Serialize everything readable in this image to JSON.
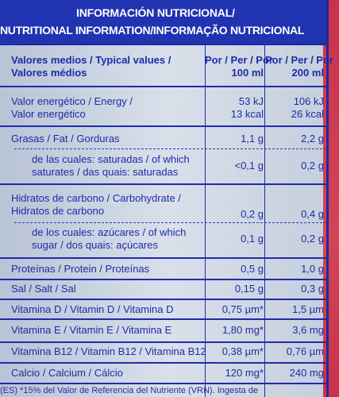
{
  "header": {
    "line1": "INFORMACIÓN NUTRICIONAL/",
    "line2": "NUTRITIONAL INFORMATION/INFORMAÇÃO NUTRICIONAL"
  },
  "columns": {
    "label_line1": "Valores medios / Typical values /",
    "label_line2": "Valores médios",
    "col1_line1": "Por / Per / Por",
    "col1_line2": "100 ml",
    "col2_line1": "Por / Per / Por",
    "col2_line2": "200 ml"
  },
  "rows": {
    "energy": {
      "label1": "Valor energético / Energy /",
      "label2": "Valor energético",
      "v1a": "53 kJ",
      "v1b": "13 kcal",
      "v2a": "106 kJ",
      "v2b": "26 kcal"
    },
    "fat": {
      "label": "Grasas / Fat / Gorduras",
      "v1": "1,1 g",
      "v2": "2,2 g"
    },
    "saturates": {
      "label1": "de las cuales: saturadas / of which",
      "label2": "saturates / das quais: saturadas",
      "v1": "<0,1 g",
      "v2": "0,2 g"
    },
    "carbs": {
      "label1": "Hidratos de carbono / Carbohydrate /",
      "label2": "Hidratos de carbono",
      "v1": "0,2 g",
      "v2": "0,4 g"
    },
    "sugars": {
      "label1": "de los cuales: azúcares / of which",
      "label2": "sugar / dos quais: açúcares",
      "v1": "0,1 g",
      "v2": "0,2 g"
    },
    "protein": {
      "label": "Proteínas / Protein / Proteínas",
      "v1": "0,5 g",
      "v2": "1,0 g"
    },
    "salt": {
      "label": "Sal / Salt / Sal",
      "v1": "0,15 g",
      "v2": "0,3 g"
    },
    "vitd": {
      "label": "Vitamina D / Vitamin D / Vitamina D",
      "v1": "0,75 µm*",
      "v2": "1,5 µm"
    },
    "vite": {
      "label": "Vitamina E / Vitamin E / Vitamina E",
      "v1": "1,80 mg*",
      "v2": "3,6 mg"
    },
    "vitb12": {
      "label": "Vitamina B12 / Vitamin B12 / Vitamina B12",
      "v1": "0,38 µm*",
      "v2": "0,76 µm"
    },
    "calcium": {
      "label": "Calcio / Calcium / Cálcio",
      "v1": "120 mg*",
      "v2": "240 mg"
    }
  },
  "footer": {
    "text": "(ES) *15% del Valor de Referencia del Nutriente (VRN). Ingesta de"
  },
  "colors": {
    "header_bg": "#2033b0",
    "text": "#1d2ca8",
    "accent_red": "#c8324a"
  }
}
